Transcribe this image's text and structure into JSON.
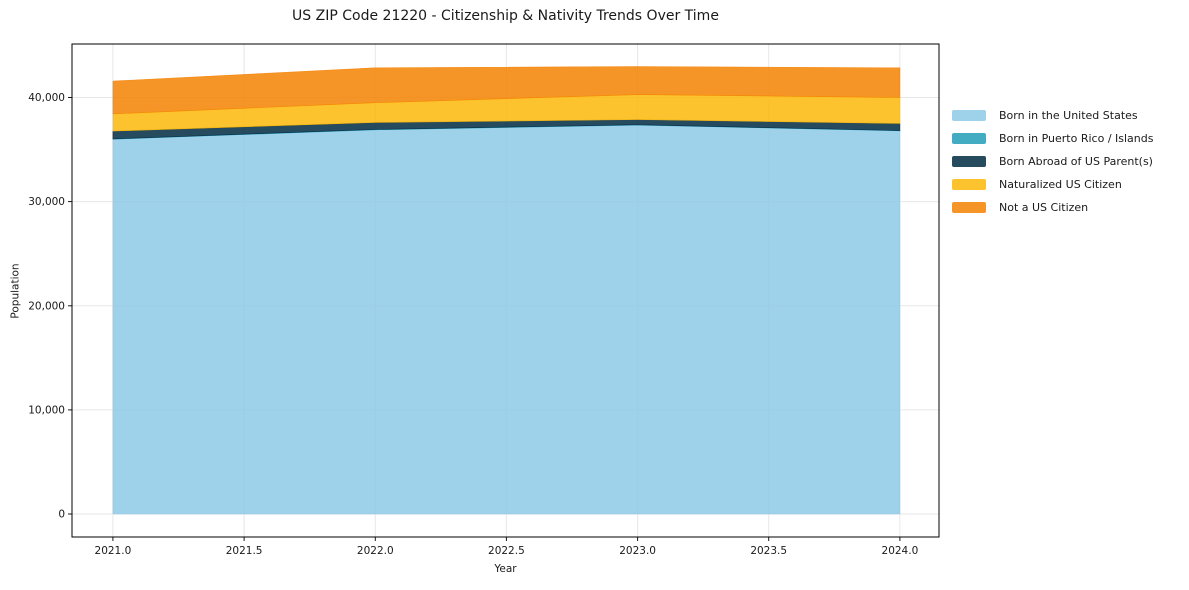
{
  "chart_data": {
    "type": "area",
    "stacked": true,
    "title": "US ZIP Code 21220 - Citizenship & Nativity Trends Over Time",
    "xlabel": "Year",
    "ylabel": "Population",
    "x": [
      2021,
      2022,
      2023,
      2024
    ],
    "series": [
      {
        "name": "Born in the United States",
        "color": "#8dc9e6",
        "values": [
          36000,
          36900,
          37350,
          36800
        ]
      },
      {
        "name": "Born in Puerto Rico / Islands",
        "color": "#229db9",
        "values": [
          25,
          25,
          25,
          25
        ]
      },
      {
        "name": "Born Abroad of US Parent(s)",
        "color": "#002a42",
        "values": [
          750,
          675,
          500,
          675
        ]
      },
      {
        "name": "Naturalized US Citizen",
        "color": "#fbb80b",
        "values": [
          1650,
          1900,
          2400,
          2500
        ]
      },
      {
        "name": "Not a US Citizen",
        "color": "#f58301",
        "values": [
          3150,
          3350,
          2700,
          2850
        ]
      }
    ],
    "totals": [
      41575,
      42850,
      42975,
      42850
    ],
    "x_ticks": {
      "values": [
        2021.0,
        2021.5,
        2022.0,
        2022.5,
        2023.0,
        2023.5,
        2024.0
      ],
      "labels": [
        "2021.0",
        "2021.5",
        "2022.0",
        "2022.5",
        "2023.0",
        "2023.5",
        "2024.0"
      ]
    },
    "y_ticks": {
      "values": [
        0,
        10000,
        20000,
        30000,
        40000
      ],
      "labels": [
        "0",
        "10,000",
        "20,000",
        "30,000",
        "40,000"
      ]
    },
    "x_range": [
      2020.844,
      2024.149
    ],
    "ylim": [
      -2209,
      45139
    ],
    "grid": true,
    "legend_position": "right-outside"
  },
  "colors": {
    "background": "#ffffff",
    "grid": "#e7e7e7",
    "spine": "#000000",
    "text": "#1a1a1a"
  }
}
